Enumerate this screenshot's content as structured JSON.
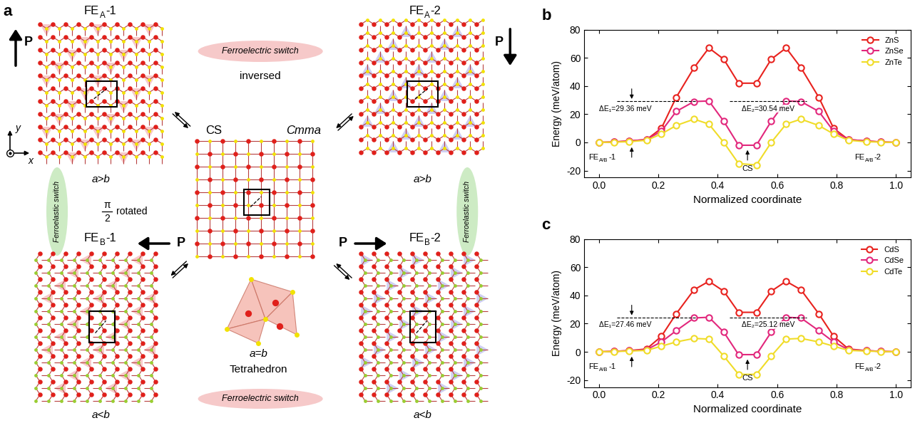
{
  "diagram": {
    "panel_label": "a",
    "axes": {
      "x": "x",
      "y": "y"
    },
    "states": [
      {
        "name": {
          "main": "FE",
          "sub": "A",
          "tail": "-1"
        },
        "cell": "a>b",
        "polarization": "P"
      },
      {
        "name": {
          "main": "FE",
          "sub": "A",
          "tail": "-2"
        },
        "cell": "a>b",
        "polarization": "P"
      },
      {
        "name": {
          "main": "FE",
          "sub": "B",
          "tail": "-1"
        },
        "cell": "a<b",
        "polarization": "P"
      },
      {
        "name": {
          "main": "FE",
          "sub": "B",
          "tail": "-2"
        },
        "cell": "a<b",
        "polarization": "P"
      }
    ],
    "center": {
      "name": "CS",
      "space_group": "Cmma",
      "cell": "a=b",
      "polyhedron": "Tetrahedron"
    },
    "ferroelectric_switch": [
      "Ferroelectric switch",
      "Ferroelectric switch"
    ],
    "inversed": "inversed",
    "ferroelastic_switch": [
      "Ferroelastic switch",
      "Ferroelastic switch"
    ],
    "rotation": {
      "numerator": "π",
      "denominator": "2",
      "text": "rotated"
    }
  },
  "chart_data": [
    {
      "type": "line",
      "panel_label": "b",
      "xlabel": "Normalized coordinate",
      "ylabel": "Energy (meV/atom)",
      "x": [
        0.0,
        0.05,
        0.1,
        0.16,
        0.21,
        0.26,
        0.32,
        0.37,
        0.42,
        0.47,
        0.53,
        0.58,
        0.63,
        0.68,
        0.74,
        0.79,
        0.84,
        0.9,
        0.95,
        1.0
      ],
      "xlim": [
        -0.05,
        1.05
      ],
      "xticks": [
        0.0,
        0.2,
        0.4,
        0.6,
        0.8,
        1.0
      ],
      "ylim": [
        -25,
        80
      ],
      "yticks": [
        -20,
        0,
        20,
        40,
        60,
        80
      ],
      "legend": "upper right",
      "marker": "circle",
      "line_style": "solid",
      "annotations": {
        "barrier_1": "ΔE₁=29.36 meV",
        "barrier_2": "ΔE₂=30.54 meV",
        "start": {
          "main": "FE",
          "sub": "A/B",
          "tail": "-1"
        },
        "end": {
          "main": "FE",
          "sub": "A/B",
          "tail": "-2"
        },
        "center": "CS"
      },
      "series": [
        {
          "name": "ZnS",
          "color": "#e8221e",
          "values": [
            0,
            0.3,
            1,
            2,
            10,
            32,
            53,
            67,
            59,
            42,
            42,
            59,
            67,
            53,
            32,
            10,
            2,
            1,
            0.3,
            0
          ]
        },
        {
          "name": "ZnSe",
          "color": "#e2277c",
          "values": [
            0,
            0.3,
            1,
            2,
            8,
            22,
            29,
            29.4,
            15,
            -2,
            -2,
            15,
            29.4,
            29,
            22,
            8,
            2,
            1,
            0.3,
            0
          ]
        },
        {
          "name": "ZnTe",
          "color": "#f0dc28",
          "values": [
            0,
            0.2,
            0.5,
            1.5,
            6,
            12,
            16.5,
            13,
            0,
            -15,
            -16,
            0,
            13,
            16.5,
            12,
            6,
            1.5,
            0.5,
            0.2,
            0
          ]
        }
      ]
    },
    {
      "type": "line",
      "panel_label": "c",
      "xlabel": "Normalized coordinate",
      "ylabel": "Energy (meV/atom)",
      "x": [
        0.0,
        0.05,
        0.1,
        0.16,
        0.21,
        0.26,
        0.32,
        0.37,
        0.42,
        0.47,
        0.53,
        0.58,
        0.63,
        0.68,
        0.74,
        0.79,
        0.84,
        0.9,
        0.95,
        1.0
      ],
      "xlim": [
        -0.05,
        1.05
      ],
      "xticks": [
        0.0,
        0.2,
        0.4,
        0.6,
        0.8,
        1.0
      ],
      "ylim": [
        -25,
        80
      ],
      "yticks": [
        -20,
        0,
        20,
        40,
        60,
        80
      ],
      "legend": "upper right",
      "marker": "circle",
      "line_style": "solid",
      "annotations": {
        "barrier_1": "ΔE₁=27.46 meV",
        "barrier_2": "ΔE₂=25.12 meV",
        "start": {
          "main": "FE",
          "sub": "A/B",
          "tail": "-1"
        },
        "end": {
          "main": "FE",
          "sub": "A/B",
          "tail": "-2"
        },
        "center": "CS"
      },
      "series": [
        {
          "name": "CdS",
          "color": "#e8221e",
          "values": [
            0,
            0.3,
            0.8,
            2,
            11,
            27,
            44,
            50,
            43,
            28,
            28,
            43,
            50,
            44,
            27,
            11,
            2,
            0.8,
            0.3,
            0
          ]
        },
        {
          "name": "CdSe",
          "color": "#e2277c",
          "values": [
            0,
            0.3,
            0.8,
            1.5,
            7,
            15,
            24,
            24.5,
            14,
            -2,
            -2,
            14,
            24.5,
            24,
            15,
            7,
            1.5,
            0.8,
            0.3,
            0
          ]
        },
        {
          "name": "CdTe",
          "color": "#f0dc28",
          "values": [
            0,
            0.2,
            0.5,
            1,
            4,
            7,
            9.5,
            9,
            -3,
            -16,
            -16,
            -3,
            9,
            9.5,
            7,
            4,
            1,
            0.5,
            0.2,
            0
          ]
        }
      ]
    }
  ]
}
